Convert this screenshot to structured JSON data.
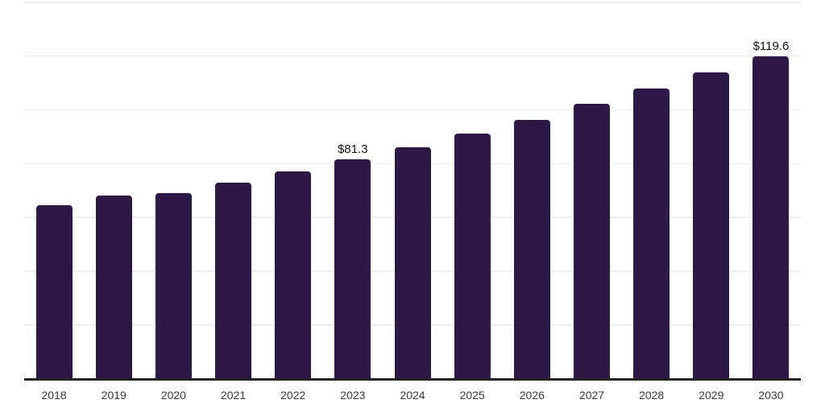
{
  "chart_data": {
    "type": "bar",
    "title": "",
    "xlabel": "",
    "ylabel": "",
    "categories": [
      "2018",
      "2019",
      "2020",
      "2021",
      "2022",
      "2023",
      "2024",
      "2025",
      "2026",
      "2027",
      "2028",
      "2029",
      "2030"
    ],
    "values": [
      64.3,
      67.8,
      68.7,
      72.6,
      77.0,
      81.3,
      86.0,
      90.8,
      96.0,
      101.9,
      107.6,
      113.8,
      119.6
    ],
    "data_labels": [
      "",
      "",
      "",
      "",
      "",
      "$81.3",
      "",
      "",
      "",
      "",
      "",
      "",
      "$119.6"
    ],
    "ylim": [
      0,
      140
    ],
    "grid_step": 20,
    "grid": "horizontal",
    "legend_position": "none",
    "y_tick_labels_visible": false,
    "colors": {
      "bar": "#2e1846",
      "axis_line": "#222222",
      "gridline": "#eeeeee",
      "tick_label": "#3a3a3a",
      "data_label": "#141414",
      "background": "#ffffff"
    }
  }
}
